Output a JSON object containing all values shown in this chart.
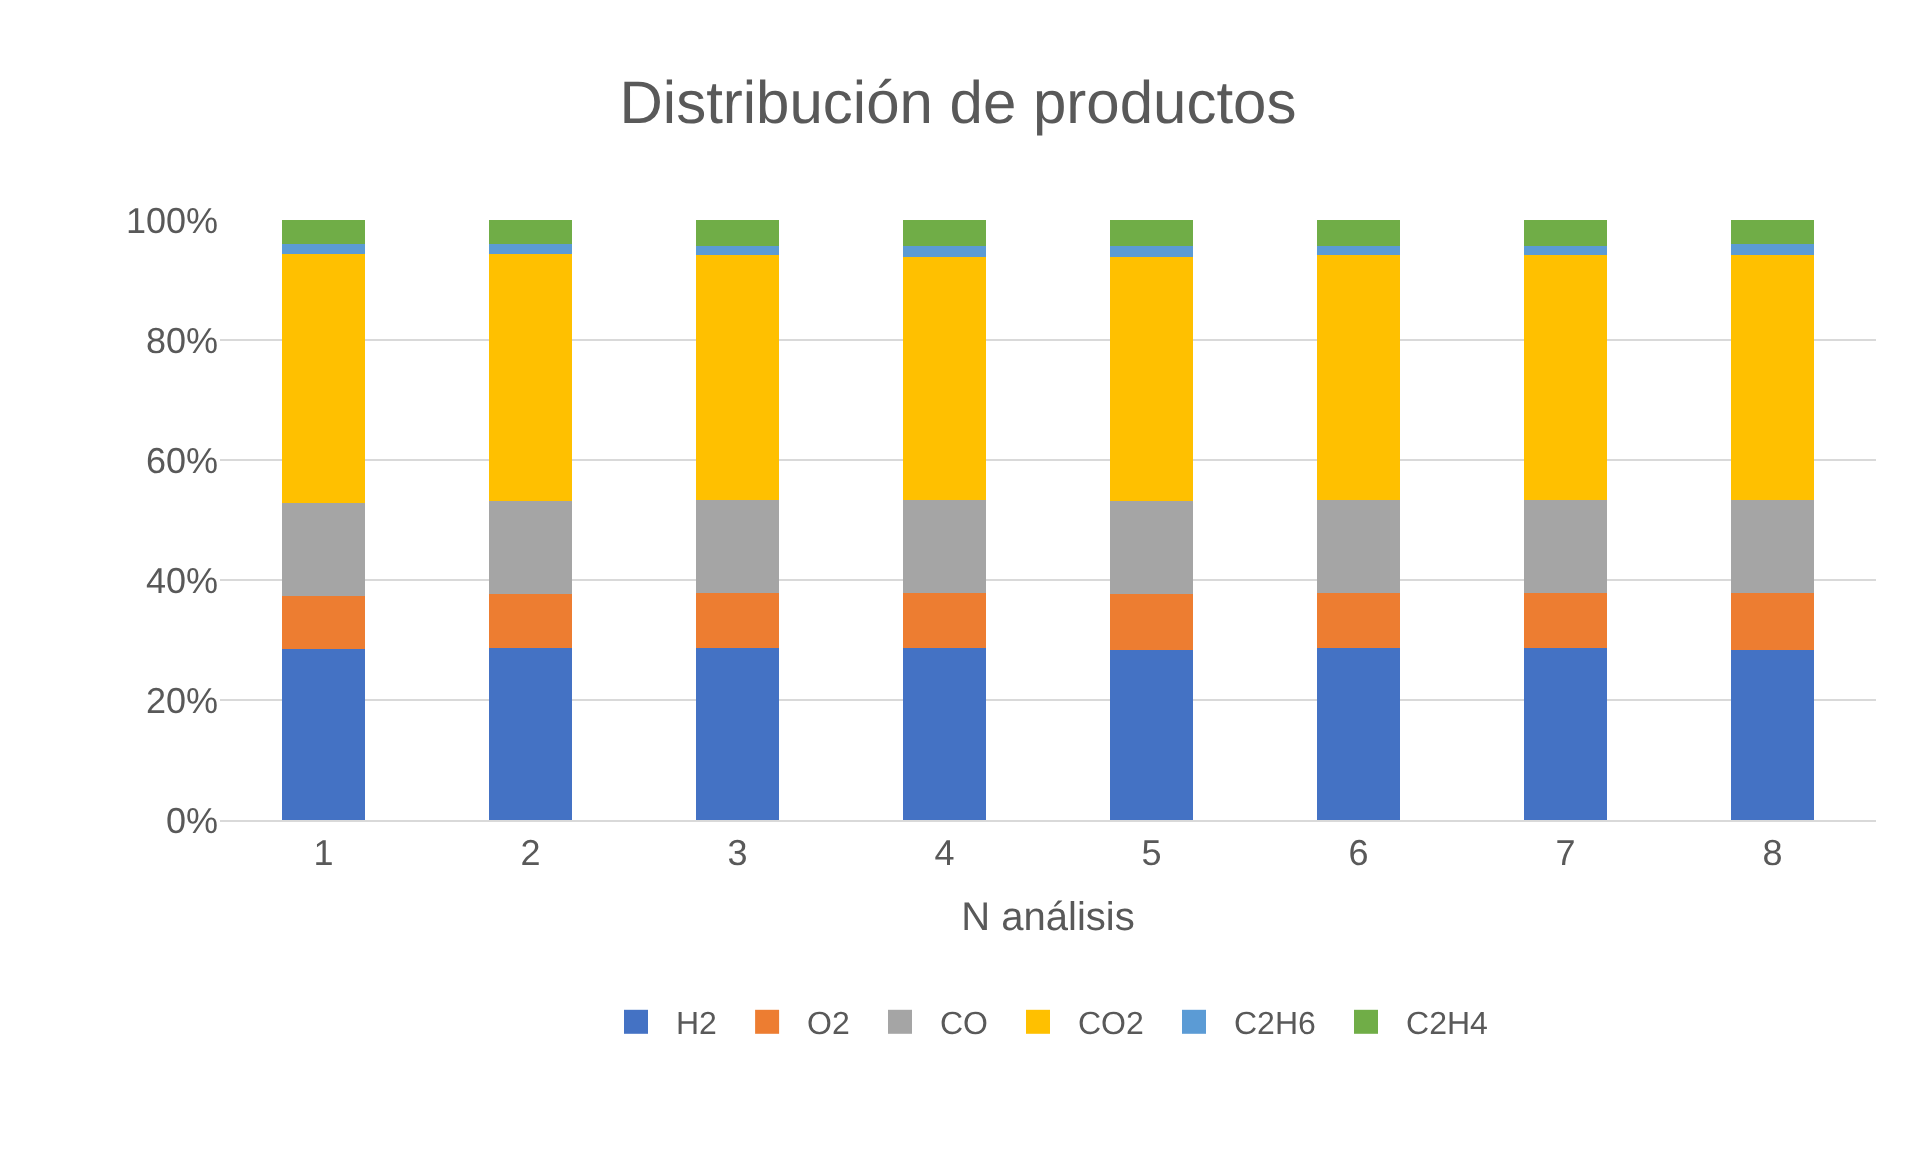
{
  "chart_data": {
    "type": "bar",
    "stacked": true,
    "title": "Distribución de productos",
    "xlabel": "N análisis",
    "categories": [
      "1",
      "2",
      "3",
      "4",
      "5",
      "6",
      "7",
      "8"
    ],
    "series": [
      {
        "name": "H2",
        "color": "#4472c4",
        "values": [
          28.5,
          28.7,
          28.7,
          28.7,
          28.4,
          28.6,
          28.6,
          28.4
        ]
      },
      {
        "name": "O2",
        "color": "#ed7d31",
        "values": [
          8.9,
          8.9,
          9.1,
          9.1,
          9.3,
          9.2,
          9.2,
          9.4
        ]
      },
      {
        "name": "CO",
        "color": "#a5a5a5",
        "values": [
          15.5,
          15.5,
          15.5,
          15.5,
          15.4,
          15.5,
          15.5,
          15.5
        ]
      },
      {
        "name": "CO2",
        "color": "#ffc000",
        "values": [
          41.5,
          41.2,
          40.8,
          40.6,
          40.7,
          40.8,
          40.8,
          40.9
        ]
      },
      {
        "name": "C2H6",
        "color": "#5b9bd5",
        "values": [
          1.6,
          1.7,
          1.6,
          1.7,
          1.8,
          1.6,
          1.6,
          1.8
        ]
      },
      {
        "name": "C2H4",
        "color": "#70ad47",
        "values": [
          4.0,
          4.0,
          4.3,
          4.4,
          4.4,
          4.3,
          4.3,
          4.0
        ]
      }
    ],
    "ylim": [
      0,
      100
    ],
    "yticks": [
      {
        "value": 0,
        "label": "0%"
      },
      {
        "value": 20,
        "label": "20%"
      },
      {
        "value": 40,
        "label": "40%"
      },
      {
        "value": 60,
        "label": "60%"
      },
      {
        "value": 80,
        "label": "80%"
      },
      {
        "value": 100,
        "label": "100%"
      }
    ],
    "grid": "y",
    "legend": "bottom"
  }
}
